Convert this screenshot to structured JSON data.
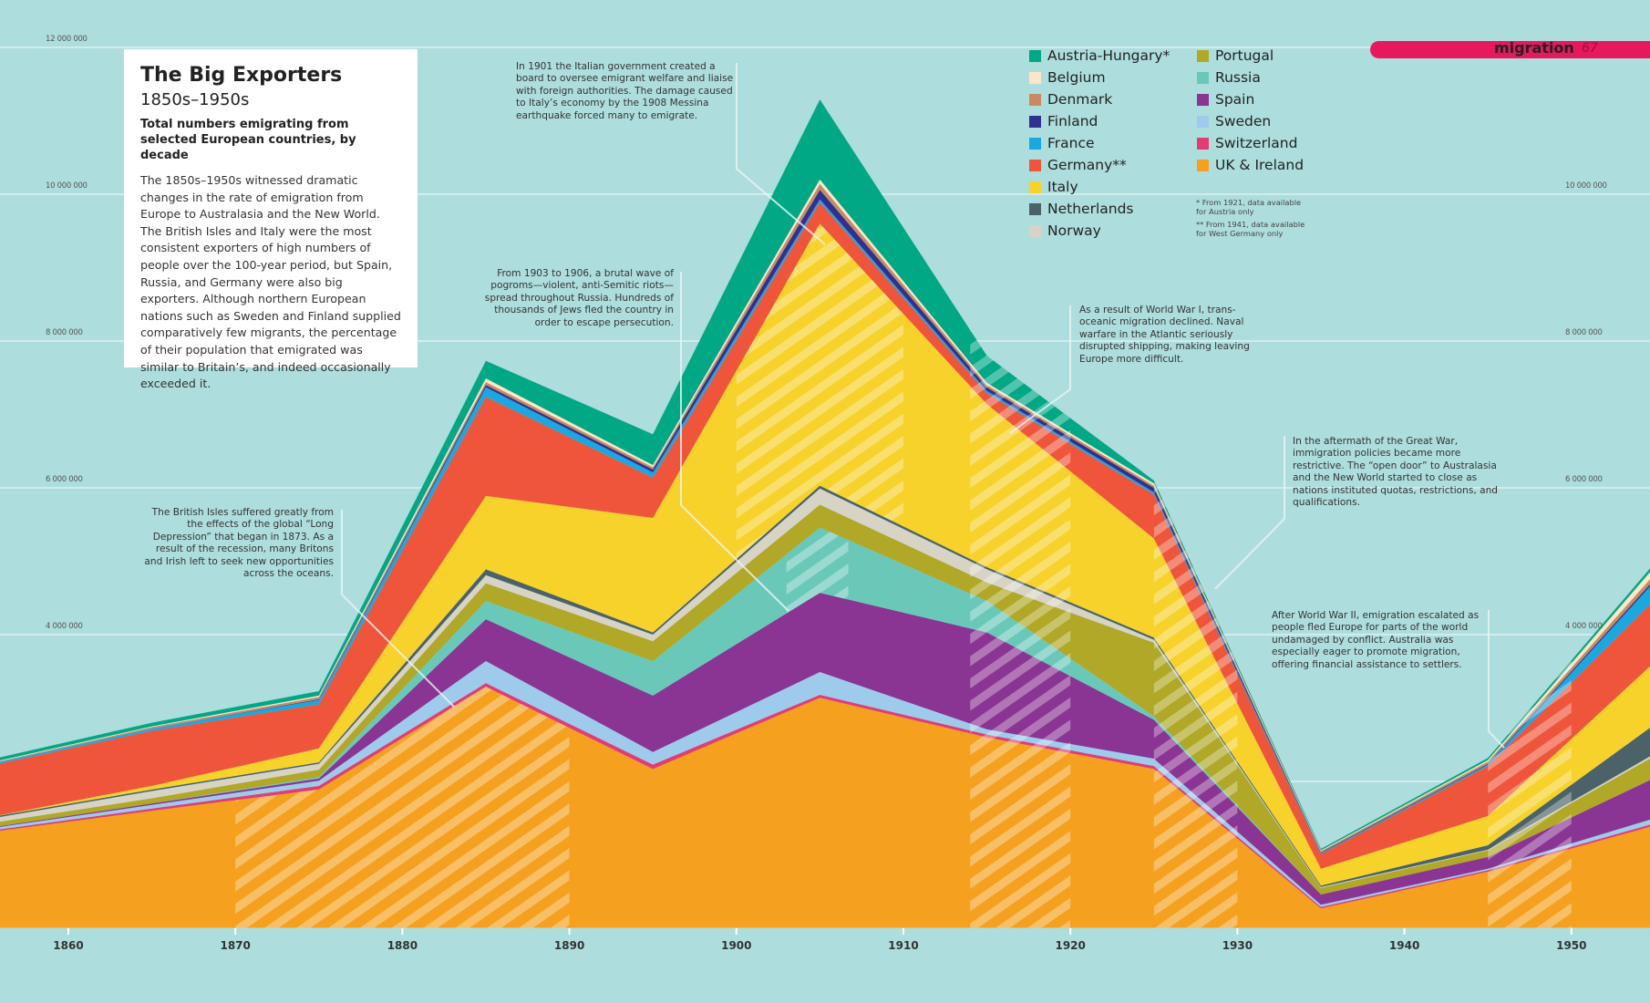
{
  "info": {
    "title": "The Big Exporters",
    "period": "1850s–1950s",
    "subtitle": "Total numbers emigrating from selected European countries, by decade",
    "body": "The 1850s–1950s witnessed dramatic changes in the rate of emigration from Europe to Australasia and the New World. The British Isles and Italy were the most consistent exporters of high numbers of people over the 100-year period, but Spain, Russia, and Germany were also big exporters. Although northern European nations such as Sweden and Finland supplied comparatively few migrants, the percentage of their population that emigrated was similar to Britain’s, and indeed occasionally exceeded it."
  },
  "header": {
    "section": "migration",
    "page": "67"
  },
  "footnotes": [
    "* From 1921, data available for Austria only",
    "** From 1941, data available for West Germany only"
  ],
  "annotations": {
    "italy": "In 1901 the Italian government created a board to oversee emigrant welfare and liaise with foreign authorities. The damage caused to Italy’s economy by the 1908 Messina earthquake forced many to emigrate.",
    "russia": "From 1903 to 1906, a brutal wave of pogroms—violent, anti-Semitic riots—spread throughout Russia. Hundreds of thousands of Jews fled the country in order to escape persecution.",
    "britain": "The British Isles suffered greatly from the effects of the global “Long Depression” that began in 1873. As a result of the recession, many Britons and Irish left to seek new opportunities across the oceans.",
    "ww1": "As a result of World War I, trans-oceanic migration declined. Naval warfare in the Atlantic seriously disrupted shipping, making leaving Europe more difficult.",
    "greatwar": "In the aftermath of the Great War, immigration policies became more restrictive. The “open door” to Australasia and the New World started to close as nations instituted quotas, restrictions, and qualifications.",
    "ww2": "After World War II, emigration escalated as people fled Europe for parts of the world undamaged by conflict. Australia was especially eager to promote migration, offering financial assistance to settlers."
  },
  "chart_data": {
    "type": "area",
    "stacked": true,
    "background": "#aedddd",
    "x": [
      "1850s",
      "1860s",
      "1870s",
      "1880s",
      "1890s",
      "1900s",
      "1910s",
      "1920s",
      "1930s",
      "1940s",
      "1950s"
    ],
    "xticks": [
      "1860",
      "1870",
      "1880",
      "1890",
      "1900",
      "1910",
      "1920",
      "1930",
      "1940",
      "1950"
    ],
    "ylim": [
      0,
      12000000
    ],
    "yticks_left": [
      "12 000 000",
      "10 000 000",
      "8 000 000",
      "6 000 000",
      "4 000 000"
    ],
    "yticks_right": [
      "10 000 000",
      "8 000 000",
      "6 000 000",
      "4 000 000"
    ],
    "ytick_values_left": [
      12000000,
      10000000,
      8000000,
      6000000,
      4000000
    ],
    "ytick_values_right": [
      10000000,
      8000000,
      6000000,
      4000000
    ],
    "grid": true,
    "legend_position": "top-right",
    "units": "emigrants",
    "series": [
      {
        "name": "Austria-Hungary*",
        "color": "#00a886",
        "values": [
          40000,
          50000,
          60000,
          240000,
          420000,
          1090000,
          370000,
          40000,
          20000,
          30000,
          50000
        ]
      },
      {
        "name": "Belgium",
        "color": "#fce6c5",
        "values": [
          10000,
          10000,
          20000,
          50000,
          30000,
          60000,
          30000,
          30000,
          10000,
          20000,
          100000
        ]
      },
      {
        "name": "Denmark",
        "color": "#c98a62",
        "values": [
          10000,
          20000,
          30000,
          40000,
          30000,
          80000,
          30000,
          30000,
          20000,
          30000,
          70000
        ]
      },
      {
        "name": "Finland",
        "color": "#2e3192",
        "values": [
          0,
          0,
          10000,
          30000,
          40000,
          130000,
          50000,
          60000,
          10000,
          10000,
          30000
        ]
      },
      {
        "name": "France",
        "color": "#1aa8e0",
        "values": [
          20000,
          30000,
          60000,
          130000,
          70000,
          40000,
          30000,
          30000,
          10000,
          20000,
          250000
        ]
      },
      {
        "name": "Germany**",
        "color": "#ef553a",
        "values": [
          700000,
          750000,
          600000,
          1350000,
          550000,
          290000,
          150000,
          600000,
          200000,
          680000,
          850000
        ]
      },
      {
        "name": "Italy",
        "color": "#f6d22a",
        "values": [
          0,
          50000,
          190000,
          1000000,
          1560000,
          3570000,
          2220000,
          1350000,
          230000,
          400000,
          850000
        ]
      },
      {
        "name": "Netherlands",
        "color": "#4a6268",
        "values": [
          20000,
          20000,
          20000,
          80000,
          30000,
          40000,
          30000,
          30000,
          20000,
          60000,
          400000
        ]
      },
      {
        "name": "Norway",
        "color": "#d7d3c5",
        "values": [
          60000,
          100000,
          80000,
          110000,
          90000,
          220000,
          180000,
          40000,
          10000,
          10000,
          30000
        ]
      },
      {
        "name": "Portugal",
        "color": "#b0a826",
        "values": [
          60000,
          70000,
          100000,
          240000,
          270000,
          310000,
          250000,
          1000000,
          90000,
          90000,
          300000
        ]
      },
      {
        "name": "Russia",
        "color": "#6ac8b9",
        "values": [
          0,
          0,
          20000,
          250000,
          470000,
          890000,
          430000,
          50000,
          0,
          0,
          0
        ]
      },
      {
        "name": "Spain",
        "color": "#8a3593",
        "values": [
          10000,
          20000,
          30000,
          570000,
          770000,
          1080000,
          1320000,
          530000,
          140000,
          160000,
          550000
        ]
      },
      {
        "name": "Sweden",
        "color": "#9ecbeb",
        "values": [
          30000,
          50000,
          70000,
          300000,
          170000,
          310000,
          70000,
          100000,
          30000,
          20000,
          70000
        ]
      },
      {
        "name": "Switzerland",
        "color": "#e23d73",
        "values": [
          20000,
          30000,
          50000,
          50000,
          60000,
          40000,
          40000,
          40000,
          20000,
          20000,
          30000
        ]
      },
      {
        "name": "UK & Ireland",
        "color": "#f5a01f",
        "values": [
          1300000,
          1600000,
          1890000,
          3290000,
          2170000,
          3140000,
          2600000,
          2170000,
          270000,
          770000,
          1400000
        ]
      }
    ],
    "highlighted_periods": [
      {
        "from": 1870,
        "to": 1890,
        "series": [
          "UK & Ireland"
        ]
      },
      {
        "from": 1900,
        "to": 1910,
        "series": [
          "Italy"
        ]
      },
      {
        "from": 1903,
        "to": 1906.7,
        "series": [
          "Russia"
        ]
      },
      {
        "from": 1914,
        "to": 1920,
        "series": "all"
      },
      {
        "from": 1925,
        "to": 1930,
        "series": "all"
      },
      {
        "from": 1945,
        "to": 1950,
        "series": "all"
      }
    ]
  }
}
